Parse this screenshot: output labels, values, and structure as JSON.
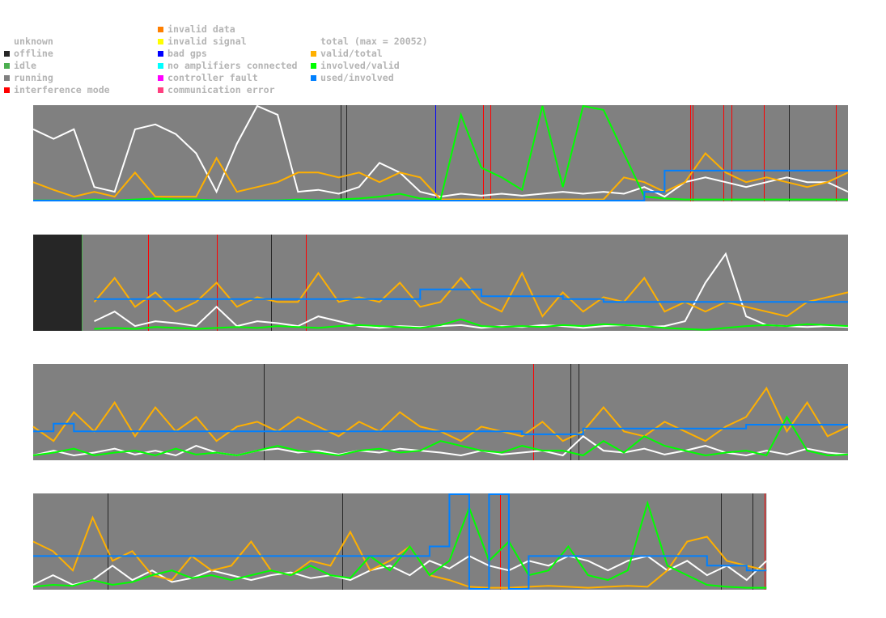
{
  "legend": {
    "status": [
      {
        "label": "unknown",
        "color": null
      },
      {
        "label": "offline",
        "color": "#262626"
      },
      {
        "label": "idle",
        "color": "#4caf50"
      },
      {
        "label": "running",
        "color": "#808080"
      },
      {
        "label": "interference mode",
        "color": "#ff0000"
      }
    ],
    "errors": [
      {
        "label": "invalid data",
        "color": "#ff7f00"
      },
      {
        "label": "invalid signal",
        "color": "#ffff00"
      },
      {
        "label": "bad gps",
        "color": "#0000ff"
      },
      {
        "label": "no amplifiers connected",
        "color": "#00ffff"
      },
      {
        "label": "controller fault",
        "color": "#ff00ff"
      },
      {
        "label": "communication error",
        "color": "#ff4080"
      }
    ],
    "ratios": [
      {
        "label": "total (max = 20052)",
        "color": "#ffffff"
      },
      {
        "label": "valid/total",
        "color": "#ffb000"
      },
      {
        "label": "involved/valid",
        "color": "#00ff00"
      },
      {
        "label": "used/involved",
        "color": "#0080ff"
      }
    ]
  },
  "chart_data": [
    {
      "type": "line",
      "t_range": [
        0,
        100
      ],
      "ylim": [
        0,
        1
      ],
      "background": "running",
      "status_spans": [],
      "markers": [
        {
          "t": 37.7,
          "status": "offline"
        },
        {
          "t": 38.4,
          "status": "offline"
        },
        {
          "t": 92.8,
          "status": "offline"
        },
        {
          "t": 49.4,
          "status": "bad gps"
        },
        {
          "t": 55.2,
          "status": "interference mode"
        },
        {
          "t": 56.1,
          "status": "interference mode"
        },
        {
          "t": 80.6,
          "status": "interference mode"
        },
        {
          "t": 80.9,
          "status": "interference mode"
        },
        {
          "t": 84.7,
          "status": "interference mode"
        },
        {
          "t": 85.7,
          "status": "interference mode"
        },
        {
          "t": 89.7,
          "status": "interference mode"
        },
        {
          "t": 98.5,
          "status": "interference mode"
        }
      ],
      "series": [
        {
          "name": "total",
          "color": "#ffffff",
          "values": [
            0.75,
            0.65,
            0.75,
            0.15,
            0.1,
            0.75,
            0.8,
            0.7,
            0.5,
            0.1,
            0.6,
            1.0,
            0.9,
            0.1,
            0.12,
            0.08,
            0.15,
            0.4,
            0.3,
            0.1,
            0.05,
            0.08,
            0.06,
            0.08,
            0.06,
            0.08,
            0.1,
            0.08,
            0.1,
            0.08,
            0.15,
            0.05,
            0.2,
            0.25,
            0.2,
            0.15,
            0.2,
            0.25,
            0.2,
            0.2,
            0.1
          ]
        },
        {
          "name": "valid/total",
          "color": "#ffb000",
          "values": [
            0.2,
            0.12,
            0.05,
            0.1,
            0.05,
            0.3,
            0.05,
            0.05,
            0.05,
            0.45,
            0.1,
            0.15,
            0.2,
            0.3,
            0.3,
            0.25,
            0.3,
            0.2,
            0.3,
            0.25,
            0.02,
            0.02,
            0.02,
            0.02,
            0.02,
            0.02,
            0.02,
            0.02,
            0.02,
            0.25,
            0.2,
            0.1,
            0.2,
            0.5,
            0.3,
            0.2,
            0.25,
            0.2,
            0.15,
            0.2,
            0.3
          ]
        },
        {
          "name": "involved/valid",
          "color": "#00ff00",
          "values": [
            0.01,
            0.01,
            0.01,
            0.02,
            0.01,
            0.02,
            0.03,
            0.02,
            0.02,
            0.01,
            0.01,
            0.01,
            0.01,
            0.02,
            0.01,
            0.02,
            0.03,
            0.05,
            0.08,
            0.03,
            0.02,
            0.9,
            0.35,
            0.25,
            0.12,
            1.0,
            0.15,
            1.0,
            0.95,
            0.5,
            0.05,
            0.03,
            0.02,
            0.02,
            0.02,
            0.02,
            0.02,
            0.02,
            0.02,
            0.02,
            0.02
          ]
        },
        {
          "name": "used/involved",
          "color": "#0080ff",
          "step": true,
          "values": [
            0,
            0,
            0,
            0,
            0,
            0,
            0,
            0,
            0,
            0,
            0,
            0,
            0,
            0,
            0,
            0,
            0,
            0,
            0,
            0,
            0,
            0,
            0,
            0,
            0,
            0,
            0,
            0,
            0,
            0,
            0.1,
            0.32,
            0.32,
            0.32,
            0.32,
            0.32,
            0.32,
            0.32,
            0.32,
            0.32,
            0.32
          ]
        }
      ]
    },
    {
      "type": "line",
      "t_range": [
        0,
        100
      ],
      "ylim": [
        0,
        1
      ],
      "background": "running",
      "status_spans": [
        {
          "t0": 0,
          "t1": 6,
          "status": "offline"
        }
      ],
      "markers": [
        {
          "t": 6,
          "status": "idle"
        },
        {
          "t": 29.2,
          "status": "offline"
        },
        {
          "t": 14.1,
          "status": "interference mode"
        },
        {
          "t": 22.5,
          "status": "interference mode"
        },
        {
          "t": 33.5,
          "status": "interference mode"
        }
      ],
      "series": [
        {
          "name": "total",
          "color": "#ffffff",
          "values": [
            null,
            null,
            null,
            0.1,
            0.2,
            0.05,
            0.1,
            0.08,
            0.05,
            0.25,
            0.05,
            0.1,
            0.08,
            0.05,
            0.15,
            0.1,
            0.05,
            0.03,
            0.05,
            0.04,
            0.05,
            0.06,
            0.03,
            0.05,
            0.04,
            0.06,
            0.05,
            0.03,
            0.05,
            0.06,
            0.04,
            0.05,
            0.1,
            0.5,
            0.8,
            0.15,
            0.06,
            0.05,
            0.04,
            0.05,
            0.04
          ]
        },
        {
          "name": "valid/total",
          "color": "#ffb000",
          "values": [
            null,
            null,
            null,
            0.3,
            0.55,
            0.25,
            0.4,
            0.2,
            0.3,
            0.5,
            0.25,
            0.35,
            0.3,
            0.3,
            0.6,
            0.3,
            0.35,
            0.3,
            0.5,
            0.25,
            0.3,
            0.55,
            0.3,
            0.2,
            0.6,
            0.15,
            0.4,
            0.2,
            0.35,
            0.3,
            0.55,
            0.2,
            0.3,
            0.2,
            0.3,
            0.25,
            0.2,
            0.15,
            0.3,
            0.35,
            0.4
          ]
        },
        {
          "name": "involved/valid",
          "color": "#00ff00",
          "values": [
            null,
            null,
            null,
            0.02,
            0.03,
            0.02,
            0.04,
            0.03,
            0.02,
            0.03,
            0.04,
            0.03,
            0.05,
            0.04,
            0.03,
            0.05,
            0.06,
            0.05,
            0.04,
            0.03,
            0.06,
            0.12,
            0.05,
            0.04,
            0.05,
            0.04,
            0.06,
            0.05,
            0.07,
            0.06,
            0.05,
            0.03,
            0.02,
            0.01,
            0.03,
            0.05,
            0.06,
            0.05,
            0.07,
            0.06,
            0.05
          ]
        },
        {
          "name": "used/involved",
          "color": "#0080ff",
          "step": true,
          "values": [
            null,
            null,
            null,
            0.33,
            0.33,
            0.33,
            0.33,
            0.33,
            0.33,
            0.33,
            0.33,
            0.33,
            0.33,
            0.33,
            0.33,
            0.33,
            0.33,
            0.33,
            0.33,
            0.43,
            0.43,
            0.43,
            0.36,
            0.36,
            0.36,
            0.36,
            0.33,
            0.33,
            0.3,
            0.3,
            0.3,
            0.3,
            0.3,
            0.3,
            0.3,
            0.3,
            0.3,
            0.3,
            0.3,
            0.3,
            0.3
          ]
        }
      ]
    },
    {
      "type": "line",
      "t_range": [
        0,
        100
      ],
      "ylim": [
        0,
        1
      ],
      "background": "running",
      "status_spans": [],
      "markers": [
        {
          "t": 28.3,
          "status": "offline"
        },
        {
          "t": 65.9,
          "status": "offline"
        },
        {
          "t": 66.9,
          "status": "offline"
        },
        {
          "t": 61.4,
          "status": "interference mode"
        }
      ],
      "series": [
        {
          "name": "total",
          "color": "#ffffff",
          "values": [
            0.05,
            0.1,
            0.05,
            0.08,
            0.12,
            0.06,
            0.1,
            0.05,
            0.15,
            0.08,
            0.05,
            0.1,
            0.12,
            0.08,
            0.1,
            0.06,
            0.1,
            0.08,
            0.12,
            0.1,
            0.08,
            0.05,
            0.1,
            0.06,
            0.08,
            0.1,
            0.05,
            0.25,
            0.1,
            0.08,
            0.12,
            0.06,
            0.1,
            0.15,
            0.08,
            0.05,
            0.1,
            0.06,
            0.12,
            0.08,
            0.06
          ]
        },
        {
          "name": "valid/total",
          "color": "#ffb000",
          "values": [
            0.35,
            0.2,
            0.5,
            0.3,
            0.6,
            0.25,
            0.55,
            0.3,
            0.45,
            0.2,
            0.35,
            0.4,
            0.3,
            0.45,
            0.35,
            0.25,
            0.4,
            0.3,
            0.5,
            0.35,
            0.3,
            0.2,
            0.35,
            0.3,
            0.25,
            0.4,
            0.2,
            0.3,
            0.55,
            0.3,
            0.25,
            0.4,
            0.3,
            0.2,
            0.35,
            0.45,
            0.75,
            0.3,
            0.6,
            0.25,
            0.35
          ]
        },
        {
          "name": "involved/valid",
          "color": "#00ff00",
          "values": [
            0.05,
            0.08,
            0.12,
            0.05,
            0.08,
            0.1,
            0.05,
            0.12,
            0.06,
            0.08,
            0.05,
            0.1,
            0.15,
            0.1,
            0.08,
            0.05,
            0.1,
            0.12,
            0.08,
            0.1,
            0.2,
            0.15,
            0.1,
            0.08,
            0.15,
            0.1,
            0.1,
            0.05,
            0.2,
            0.08,
            0.25,
            0.15,
            0.1,
            0.05,
            0.08,
            0.1,
            0.05,
            0.45,
            0.1,
            0.05,
            0.06
          ]
        },
        {
          "name": "used/involved",
          "color": "#0080ff",
          "step": true,
          "values": [
            0.3,
            0.38,
            0.3,
            0.3,
            0.3,
            0.3,
            0.3,
            0.3,
            0.3,
            0.3,
            0.3,
            0.3,
            0.3,
            0.3,
            0.3,
            0.3,
            0.3,
            0.3,
            0.3,
            0.3,
            0.3,
            0.3,
            0.3,
            0.3,
            0.27,
            0.27,
            0.27,
            0.33,
            0.33,
            0.33,
            0.33,
            0.33,
            0.33,
            0.33,
            0.33,
            0.37,
            0.37,
            0.37,
            0.37,
            0.37,
            0.37
          ]
        }
      ]
    },
    {
      "type": "line",
      "t_range": [
        0,
        90
      ],
      "ylim": [
        0,
        1
      ],
      "background": "running",
      "status_spans": [],
      "markers": [
        {
          "t": 9.1,
          "status": "offline"
        },
        {
          "t": 37.9,
          "status": "offline"
        },
        {
          "t": 84.4,
          "status": "offline"
        },
        {
          "t": 88.3,
          "status": "offline"
        },
        {
          "t": 57.3,
          "status": "interference mode"
        },
        {
          "t": 89.8,
          "status": "interference mode"
        }
      ],
      "series": [
        {
          "name": "total",
          "color": "#ffffff",
          "values": [
            0.05,
            0.15,
            0.05,
            0.1,
            0.25,
            0.1,
            0.2,
            0.08,
            0.12,
            0.2,
            0.15,
            0.1,
            0.15,
            0.18,
            0.12,
            0.15,
            0.1,
            0.2,
            0.25,
            0.15,
            0.3,
            0.22,
            0.35,
            0.25,
            0.2,
            0.3,
            0.25,
            0.35,
            0.3,
            0.2,
            0.3,
            0.35,
            0.2,
            0.3,
            0.15,
            0.25,
            0.1,
            0.3
          ]
        },
        {
          "name": "valid/total",
          "color": "#ffb000",
          "values": [
            0.5,
            0.4,
            0.2,
            0.75,
            0.3,
            0.4,
            0.15,
            0.1,
            0.35,
            0.2,
            0.25,
            0.5,
            0.2,
            0.15,
            0.3,
            0.25,
            0.6,
            0.2,
            0.3,
            0.45,
            0.15,
            0.1,
            0.03,
            0.02,
            0.02,
            0.03,
            0.04,
            0.03,
            0.02,
            0.03,
            0.04,
            0.03,
            0.2,
            0.5,
            0.55,
            0.3,
            0.25,
            0.2
          ]
        },
        {
          "name": "involved/valid",
          "color": "#00ff00",
          "values": [
            0.03,
            0.05,
            0.04,
            0.1,
            0.05,
            0.08,
            0.15,
            0.2,
            0.12,
            0.15,
            0.1,
            0.15,
            0.2,
            0.15,
            0.25,
            0.15,
            0.12,
            0.35,
            0.2,
            0.45,
            0.15,
            0.3,
            0.85,
            0.3,
            0.5,
            0.15,
            0.2,
            0.45,
            0.15,
            0.1,
            0.2,
            0.9,
            0.25,
            0.15,
            0.05,
            0.03,
            0.02,
            0.02
          ]
        },
        {
          "name": "used/involved",
          "color": "#0080ff",
          "step": true,
          "values": [
            0.35,
            0.35,
            0.35,
            0.35,
            0.35,
            0.35,
            0.35,
            0.35,
            0.35,
            0.35,
            0.35,
            0.35,
            0.35,
            0.35,
            0.35,
            0.35,
            0.35,
            0.35,
            0.35,
            0.35,
            0.45,
            1.0,
            0,
            1.0,
            0,
            0.35,
            0.35,
            0.35,
            0.35,
            0.35,
            0.35,
            0.35,
            0.35,
            0.35,
            0.25,
            0.25,
            0.2,
            0.2
          ]
        }
      ]
    }
  ],
  "status_colors": {
    "running": "#808080",
    "offline": "#262626",
    "idle": "#4caf50",
    "interference mode": "#ff0000",
    "bad gps": "#0000ff"
  }
}
